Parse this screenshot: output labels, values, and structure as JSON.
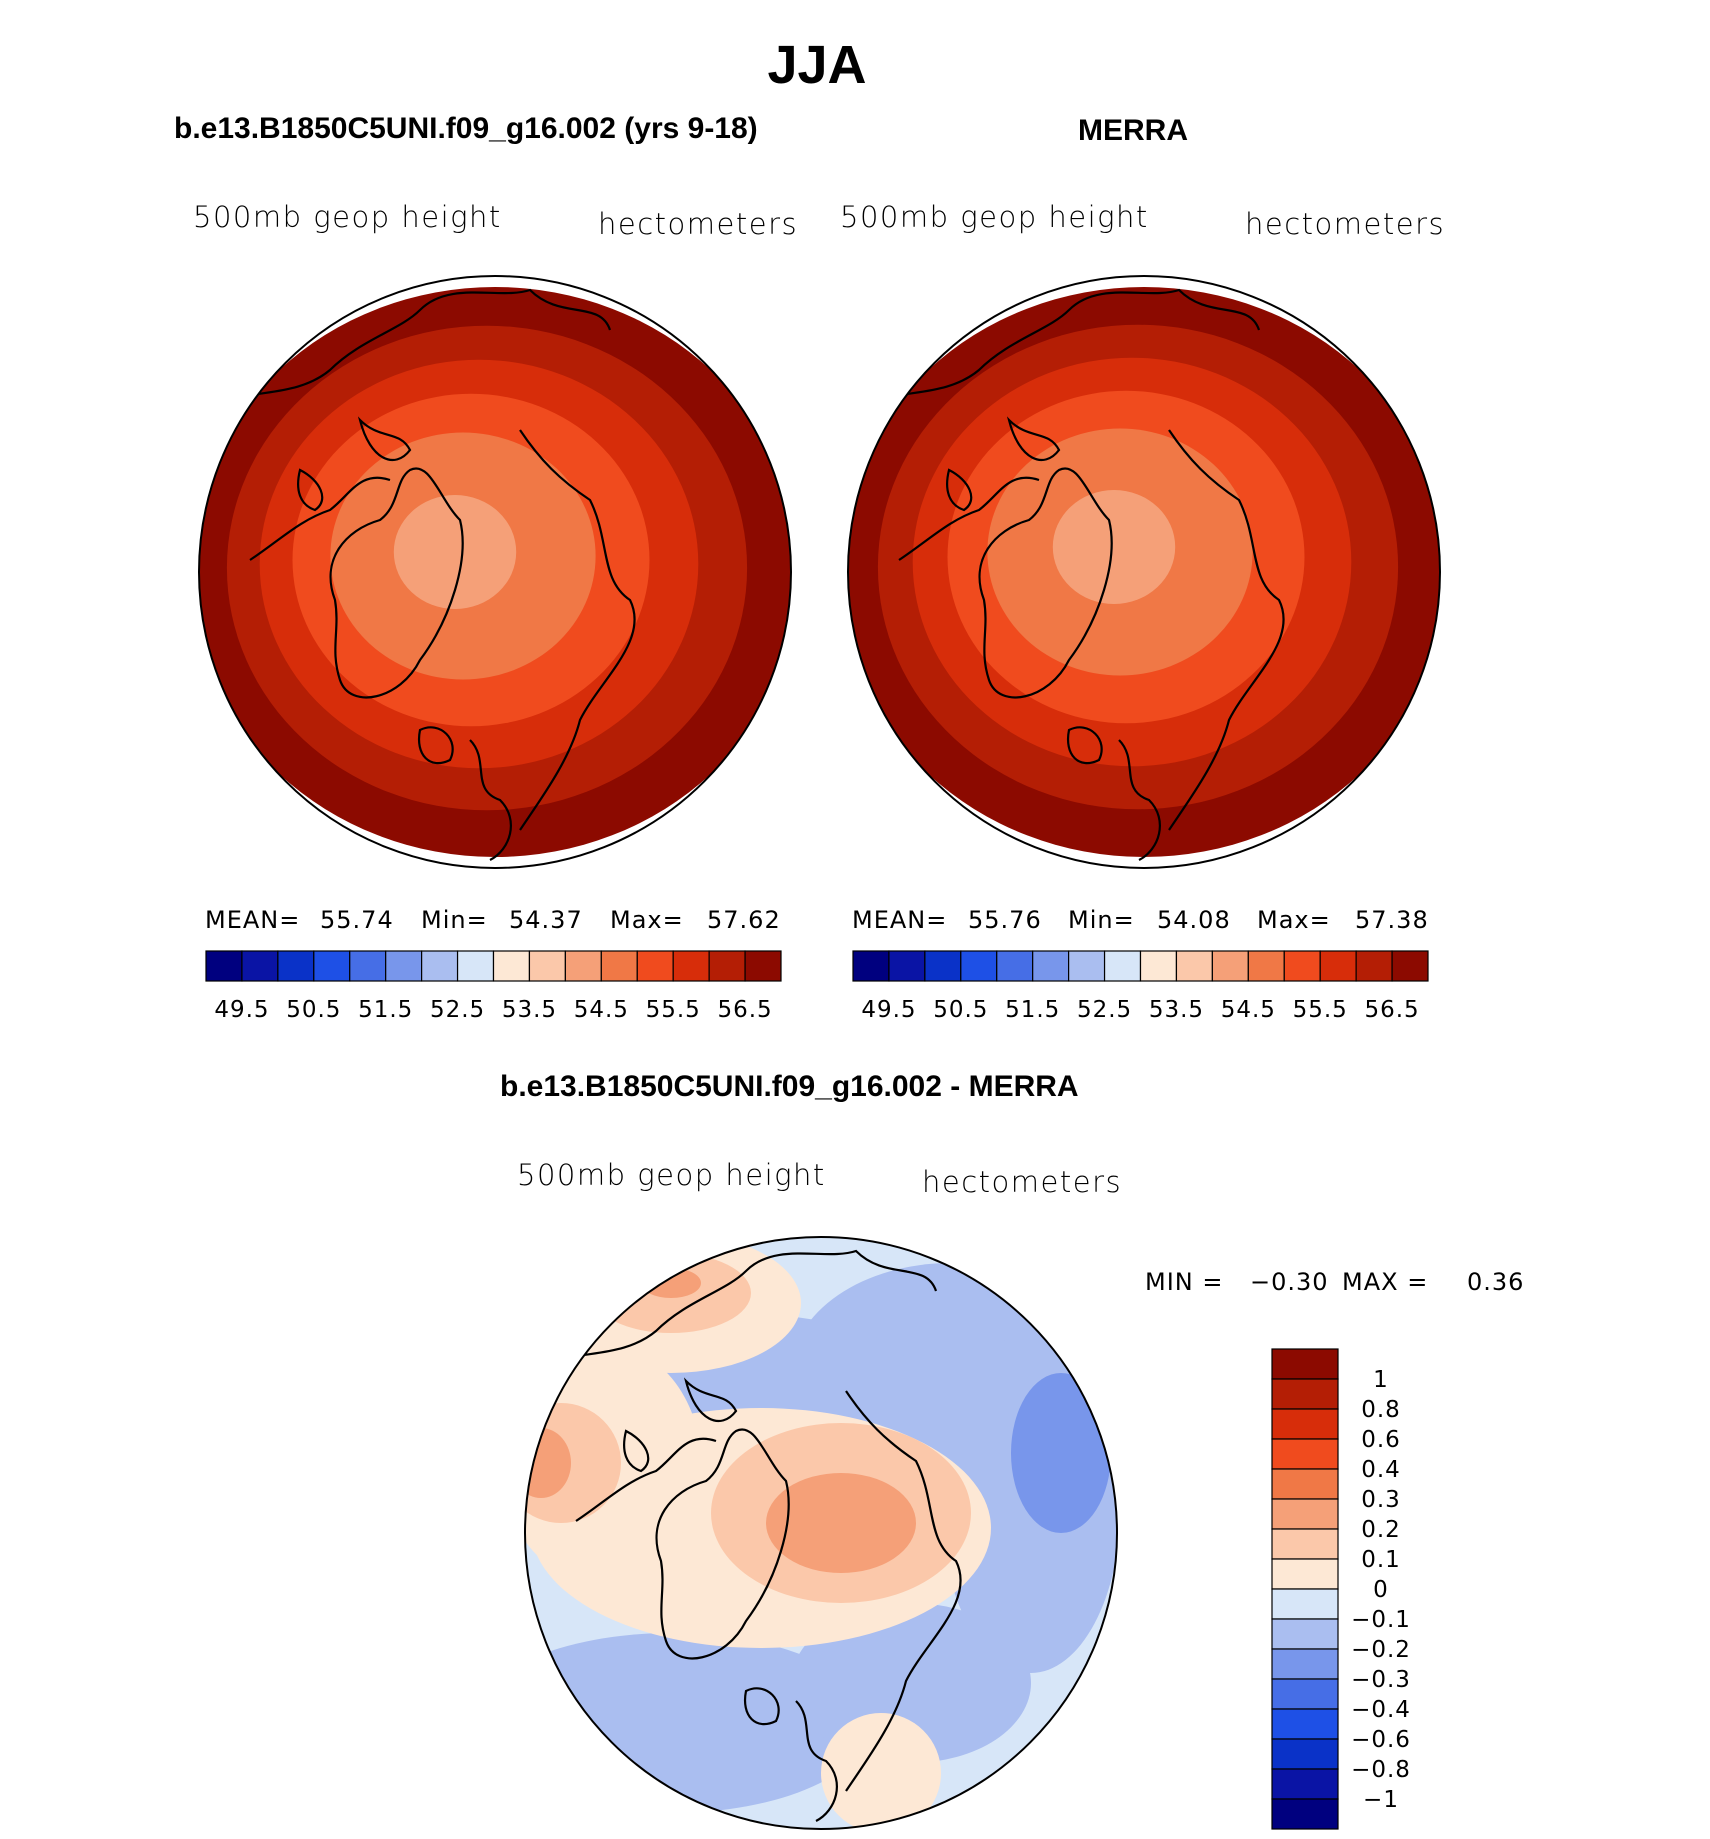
{
  "title": "JJA",
  "panels": [
    {
      "case_title": "b.e13.B1850C5UNI.f09_g16.002 (yrs 9-18)",
      "variable": "500mb geop height",
      "units": "hectometers",
      "stats": {
        "mean_label": "MEAN=",
        "mean": "55.74",
        "min_label": "Min=",
        "min": "54.37",
        "max_label": "Max=",
        "max": "57.62"
      }
    },
    {
      "case_title": "MERRA",
      "variable": "500mb geop height",
      "units": "hectometers",
      "stats": {
        "mean_label": "MEAN=",
        "mean": "55.76",
        "min_label": "Min=",
        "min": "54.08",
        "max_label": "Max=",
        "max": "57.38"
      }
    }
  ],
  "abs_colorbar": {
    "labels": [
      "49.5",
      "50.5",
      "51.5",
      "52.5",
      "53.5",
      "54.5",
      "55.5",
      "56.5"
    ],
    "colors": [
      "#00007f",
      "#0a14a5",
      "#0a32c8",
      "#1e50e6",
      "#466ee6",
      "#7896eb",
      "#aabef0",
      "#d7e6f8",
      "#fde8d5",
      "#fbc8aa",
      "#f5a078",
      "#f07846",
      "#f04b1e",
      "#d72d0a",
      "#b41e05",
      "#8c0a00"
    ]
  },
  "diff_panel": {
    "case_title": "b.e13.B1850C5UNI.f09_g16.002 - MERRA",
    "variable": "500mb geop height",
    "units": "hectometers",
    "min_label": "MIN =",
    "min": "−0.30",
    "max_label": "MAX =",
    "max": "0.36"
  },
  "diff_colorbar": {
    "labels": [
      "1",
      "0.8",
      "0.6",
      "0.4",
      "0.3",
      "0.2",
      "0.1",
      "0",
      "−0.1",
      "−0.2",
      "−0.3",
      "−0.4",
      "−0.6",
      "−0.8",
      "−1"
    ],
    "colors": [
      "#8c0a00",
      "#b41e05",
      "#d72d0a",
      "#f04b1e",
      "#f07846",
      "#f5a078",
      "#fbc8aa",
      "#fde8d5",
      "#d7e6f8",
      "#aabef0",
      "#7896eb",
      "#466ee6",
      "#1e50e6",
      "#0a32c8",
      "#0a14a5",
      "#00007f"
    ]
  },
  "fill_colors": {
    "abs1": [
      "#8c0a00",
      "#b41e05",
      "#d72d0a",
      "#f04b1e",
      "#f07846",
      "#f5a078"
    ],
    "abs2": [
      "#8c0a00",
      "#b41e05",
      "#d72d0a",
      "#f04b1e",
      "#f07846",
      "#f5a078"
    ],
    "diff_base": "#d7e6f8",
    "diff_pos": [
      "#fde8d5",
      "#fbc8aa",
      "#f5a078"
    ],
    "diff_neg": [
      "#aabef0",
      "#7896eb"
    ]
  }
}
